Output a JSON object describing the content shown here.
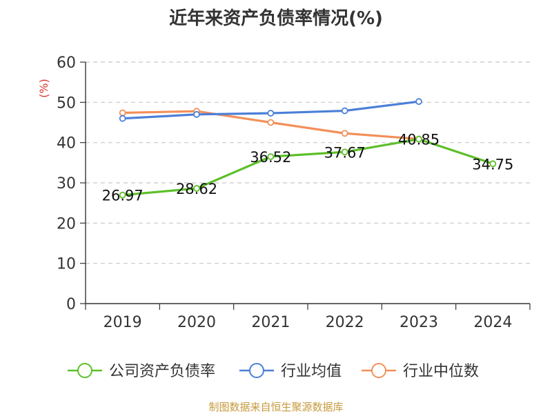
{
  "chart_data": {
    "type": "line",
    "title": "近年来资产负债率情况(%)",
    "ylabel": "(%)",
    "xlabel": "",
    "categories": [
      "2019",
      "2020",
      "2021",
      "2022",
      "2023",
      "2024"
    ],
    "ylim": [
      0,
      60
    ],
    "yticks": [
      0,
      10,
      20,
      30,
      40,
      50,
      60
    ],
    "grid": true,
    "legend_position": "bottom",
    "series": [
      {
        "name": "公司资产负债率",
        "color": "#5cbf2a",
        "values": [
          26.97,
          28.62,
          36.52,
          37.67,
          40.85,
          34.75
        ],
        "labels": [
          "26.97",
          "28.62",
          "36.52",
          "37.67",
          "40.85",
          "34.75"
        ]
      },
      {
        "name": "行业均值",
        "color": "#4b7fd8",
        "values": [
          46.0,
          47.0,
          47.3,
          47.9,
          50.2,
          null
        ]
      },
      {
        "name": "行业中位数",
        "color": "#f2905a",
        "values": [
          47.4,
          47.8,
          45.0,
          42.3,
          40.9,
          null
        ]
      }
    ]
  },
  "source_note": "制图数据来自恒生聚源数据库"
}
